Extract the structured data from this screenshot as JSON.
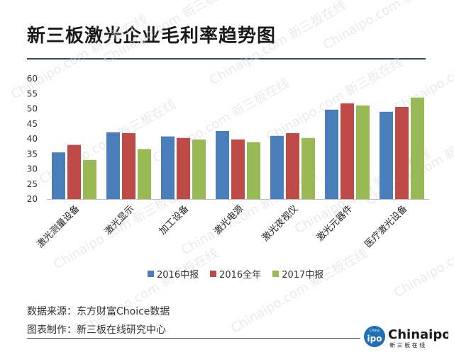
{
  "title": "新三板激光企业毛利率趋势图",
  "colors": {
    "s2016h": "#4a7ebb",
    "s2016": "#be4b48",
    "s2017h": "#98b954",
    "rule": "#2f4a6b"
  },
  "chart_data": {
    "type": "bar",
    "categories": [
      "激光测量设备",
      "激光显示",
      "加工设备",
      "激光电源",
      "激光夜视仪",
      "激光元器件",
      "医疗激光设备"
    ],
    "series": [
      {
        "name": "2016中报",
        "color": "#4a7ebb",
        "values": [
          35.5,
          42.2,
          40.8,
          42.6,
          41.0,
          49.7,
          49.0
        ]
      },
      {
        "name": "2016全年",
        "color": "#be4b48",
        "values": [
          38.0,
          41.9,
          40.3,
          39.8,
          41.9,
          51.8,
          50.6
        ]
      },
      {
        "name": "2017中报",
        "color": "#98b954",
        "values": [
          33.0,
          36.6,
          39.8,
          38.9,
          40.3,
          51.1,
          53.7
        ]
      }
    ],
    "ylim": [
      20,
      60
    ],
    "yticks": [
      20,
      25,
      30,
      35,
      40,
      45,
      50,
      55,
      60
    ],
    "legend_position": "bottom"
  },
  "footer": {
    "source": "数据来源：东方财富Choice数据",
    "maker": "图表制作：新三板在线研究中心"
  },
  "logo": {
    "wordmark": "Chinaipo",
    "subtitle": "新 三 板 在 线",
    "badge": "ipo",
    "badge_top": "China"
  },
  "watermark": "Chinaipo.com 新三板在线"
}
